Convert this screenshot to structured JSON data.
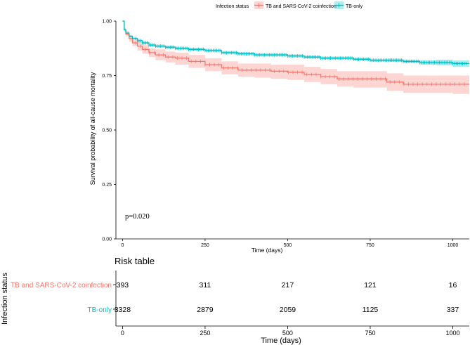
{
  "legend": {
    "title": "Infection status",
    "items": [
      {
        "label": "TB and SARS-CoV-2 coinfection",
        "color": "#F8766D"
      },
      {
        "label": "TB-only",
        "color": "#00BFC4"
      }
    ]
  },
  "chart_data": {
    "type": "line",
    "subtype": "kaplan-meier",
    "xlabel": "Time (days)",
    "ylabel": "Survival probability of all-cause mortality",
    "xlim": [
      -20,
      1050
    ],
    "ylim": [
      0,
      1
    ],
    "xticks": [
      0,
      250,
      500,
      750,
      1000
    ],
    "yticks": [
      "0.00",
      "0.25",
      "0.50",
      "0.75",
      "1.00"
    ],
    "grid": false,
    "legend_position": "top",
    "annotation": "p=0.020",
    "series": [
      {
        "name": "TB and SARS-CoV-2 coinfection",
        "color": "#F8766D",
        "x": [
          0,
          5,
          10,
          20,
          30,
          45,
          60,
          80,
          100,
          130,
          160,
          200,
          250,
          300,
          350,
          400,
          450,
          500,
          550,
          600,
          650,
          700,
          750,
          800,
          850,
          900,
          950,
          1000,
          1050
        ],
        "y": [
          1.0,
          0.96,
          0.94,
          0.92,
          0.9,
          0.885,
          0.87,
          0.855,
          0.845,
          0.835,
          0.83,
          0.815,
          0.8,
          0.785,
          0.775,
          0.775,
          0.77,
          0.765,
          0.755,
          0.745,
          0.735,
          0.735,
          0.735,
          0.72,
          0.71,
          0.71,
          0.71,
          0.71,
          0.71
        ],
        "lower": [
          1.0,
          0.95,
          0.93,
          0.905,
          0.885,
          0.865,
          0.85,
          0.835,
          0.82,
          0.81,
          0.8,
          0.785,
          0.77,
          0.755,
          0.745,
          0.74,
          0.735,
          0.73,
          0.72,
          0.71,
          0.7,
          0.695,
          0.695,
          0.68,
          0.67,
          0.67,
          0.67,
          0.665,
          0.665
        ],
        "upper": [
          1.0,
          0.97,
          0.955,
          0.935,
          0.915,
          0.905,
          0.89,
          0.875,
          0.87,
          0.86,
          0.855,
          0.845,
          0.83,
          0.815,
          0.805,
          0.805,
          0.8,
          0.8,
          0.79,
          0.78,
          0.77,
          0.77,
          0.77,
          0.76,
          0.75,
          0.75,
          0.75,
          0.75,
          0.755
        ]
      },
      {
        "name": "TB-only",
        "color": "#00BFC4",
        "x": [
          0,
          5,
          10,
          20,
          30,
          45,
          60,
          80,
          100,
          130,
          160,
          200,
          250,
          300,
          350,
          400,
          450,
          500,
          550,
          600,
          650,
          700,
          750,
          800,
          850,
          900,
          950,
          1000,
          1050
        ],
        "y": [
          1.0,
          0.96,
          0.945,
          0.93,
          0.92,
          0.91,
          0.9,
          0.89,
          0.885,
          0.88,
          0.875,
          0.87,
          0.865,
          0.855,
          0.85,
          0.845,
          0.845,
          0.84,
          0.835,
          0.83,
          0.83,
          0.825,
          0.82,
          0.82,
          0.815,
          0.81,
          0.81,
          0.805,
          0.805
        ],
        "lower": [
          1.0,
          0.955,
          0.94,
          0.925,
          0.915,
          0.905,
          0.895,
          0.885,
          0.88,
          0.875,
          0.87,
          0.865,
          0.86,
          0.85,
          0.845,
          0.84,
          0.84,
          0.835,
          0.83,
          0.825,
          0.825,
          0.82,
          0.815,
          0.813,
          0.808,
          0.8,
          0.797,
          0.79,
          0.79
        ],
        "upper": [
          1.0,
          0.965,
          0.95,
          0.935,
          0.925,
          0.915,
          0.905,
          0.895,
          0.89,
          0.885,
          0.88,
          0.875,
          0.87,
          0.86,
          0.855,
          0.85,
          0.85,
          0.845,
          0.84,
          0.835,
          0.835,
          0.83,
          0.825,
          0.827,
          0.822,
          0.82,
          0.823,
          0.82,
          0.82
        ]
      }
    ]
  },
  "risk_table": {
    "title": "Risk table",
    "ylabel": "Infection status",
    "xlabel": "Time (days)",
    "times": [
      0,
      250,
      500,
      750,
      1000
    ],
    "xtick_labels": [
      "0",
      "250",
      "500",
      "750",
      "1000"
    ],
    "rows": [
      {
        "label": "TB and SARS-CoV-2 coinfection",
        "color": "#F8766D",
        "values": [
          "393",
          "311",
          "217",
          "121",
          "16"
        ]
      },
      {
        "label": "TB-only",
        "color": "#00BFC4",
        "values": [
          "3328",
          "2879",
          "2059",
          "1125",
          "337"
        ]
      }
    ]
  }
}
